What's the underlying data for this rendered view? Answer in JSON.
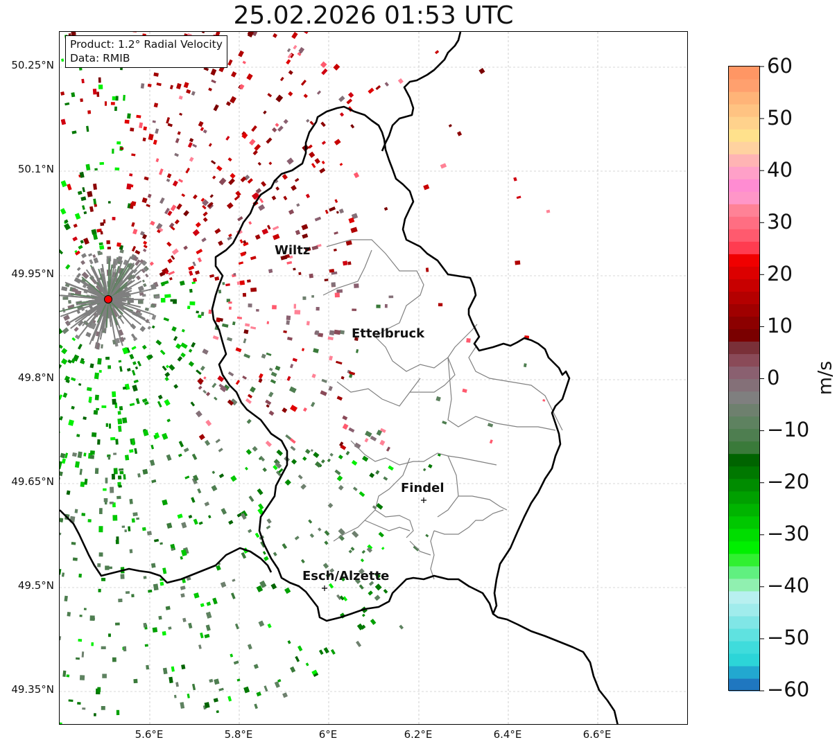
{
  "map": {
    "title": "25.02.2026 01:53 UTC",
    "info_box": {
      "product": "Product: 1.2° Radial Velocity",
      "source": "Data: RMIB"
    },
    "lat_ticks": [
      "50.25°N",
      "50.1°N",
      "49.95°N",
      "49.8°N",
      "49.65°N",
      "49.5°N",
      "49.35°N"
    ],
    "lon_ticks": [
      "5.6°E",
      "5.8°E",
      "6°E",
      "6.2°E",
      "6.4°E",
      "6.6°E"
    ],
    "cities": [
      {
        "name": "Wiltz"
      },
      {
        "name": "Ettelbruck"
      },
      {
        "name": "Findel"
      },
      {
        "name": "Esch/Alzette"
      }
    ],
    "radar_marker": "red-dot",
    "colors": {
      "border": "#000000",
      "canton_border": "#808080",
      "radar_marker": "#ff0000",
      "grid": "#b0b0b0"
    }
  },
  "colorbar": {
    "unit": "m/s",
    "ticks": [
      "60",
      "50",
      "40",
      "30",
      "20",
      "10",
      "0",
      "−10",
      "−20",
      "−30",
      "−40",
      "−50",
      "−60"
    ],
    "range": [
      -60,
      60
    ],
    "colors_low_to_high": [
      "#1f77c0",
      "#22a8d0",
      "#2cd5d8",
      "#3fdcdc",
      "#5fe2e0",
      "#80e6e6",
      "#a0ecec",
      "#b8f0f0",
      "#90f0b0",
      "#60f080",
      "#30f030",
      "#00f000",
      "#00dd00",
      "#00c800",
      "#00b400",
      "#00a000",
      "#008c00",
      "#007800",
      "#006400",
      "#3a7a3a",
      "#4e7e50",
      "#5e8260",
      "#6e806e",
      "#7f7f7f",
      "#847078",
      "#8a6070",
      "#8a4a58",
      "#7a3038",
      "#7a0000",
      "#8c0000",
      "#a00000",
      "#b40000",
      "#c80000",
      "#dc0000",
      "#f00000",
      "#ff3c50",
      "#ff5a6e",
      "#ff6e82",
      "#ff8296",
      "#ff96c8",
      "#ff8cd2",
      "#ffa0c8",
      "#ffb4b4",
      "#ffd2a0",
      "#ffe18c",
      "#ffd28c",
      "#ffc382",
      "#ffb478",
      "#ffa06e",
      "#ff9664"
    ]
  }
}
